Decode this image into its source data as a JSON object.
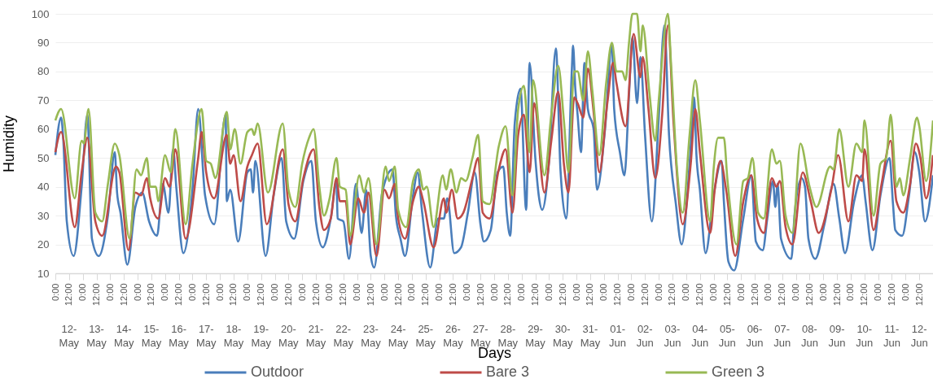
{
  "chart_data": {
    "type": "line",
    "xlabel": "Days",
    "ylabel": "Humidity",
    "xlim": [
      "--05-12T00:00",
      "--06-13T00:00"
    ],
    "ylim": [
      10,
      100
    ],
    "yticks": [
      10,
      20,
      30,
      40,
      50,
      60,
      70,
      80,
      90,
      100
    ],
    "xticks": [
      {
        "value": "--05-12T00:00",
        "label": "0:00"
      },
      {
        "value": "--05-12T12:00",
        "label": "12:00"
      },
      {
        "value": "--05-13T00:00",
        "label": "0:00"
      },
      {
        "value": "--05-13T12:00",
        "label": "12:00"
      },
      {
        "value": "--05-14T00:00",
        "label": "0:00"
      },
      {
        "value": "--05-14T12:00",
        "label": "12:00"
      },
      {
        "value": "--05-15T00:00",
        "label": "0:00"
      },
      {
        "value": "--05-15T12:00",
        "label": "12:00"
      },
      {
        "value": "--05-16T00:00",
        "label": "0:00"
      },
      {
        "value": "--05-16T12:00",
        "label": "12:00"
      },
      {
        "value": "--05-17T00:00",
        "label": "0:00"
      },
      {
        "value": "--05-17T12:00",
        "label": "12:00"
      },
      {
        "value": "--05-18T00:00",
        "label": "0:00"
      },
      {
        "value": "--05-18T12:00",
        "label": "12:00"
      },
      {
        "value": "--05-19T00:00",
        "label": "0:00"
      },
      {
        "value": "--05-19T12:00",
        "label": "12:00"
      },
      {
        "value": "--05-20T00:00",
        "label": "0:00"
      },
      {
        "value": "--05-20T12:00",
        "label": "12:00"
      },
      {
        "value": "--05-21T00:00",
        "label": "0:00"
      },
      {
        "value": "--05-21T12:00",
        "label": "12:00"
      },
      {
        "value": "--05-22T00:00",
        "label": "0:00"
      },
      {
        "value": "--05-22T12:00",
        "label": "12:00"
      },
      {
        "value": "--05-23T00:00",
        "label": "0:00"
      },
      {
        "value": "--05-23T12:00",
        "label": "12:00"
      },
      {
        "value": "--05-24T00:00",
        "label": "0:00"
      },
      {
        "value": "--05-24T12:00",
        "label": "12:00"
      },
      {
        "value": "--05-25T00:00",
        "label": "0:00"
      },
      {
        "value": "--05-25T12:00",
        "label": "12:00"
      },
      {
        "value": "--05-26T00:00",
        "label": "0:00"
      },
      {
        "value": "--05-26T12:00",
        "label": "12:00"
      },
      {
        "value": "--05-27T00:00",
        "label": "0:00"
      },
      {
        "value": "--05-27T12:00",
        "label": "12:00"
      },
      {
        "value": "--05-28T00:00",
        "label": "0:00"
      },
      {
        "value": "--05-28T12:00",
        "label": "12:00"
      },
      {
        "value": "--05-29T00:00",
        "label": "0:00"
      },
      {
        "value": "--05-29T12:00",
        "label": "12:00"
      },
      {
        "value": "--05-30T00:00",
        "label": "0:00"
      },
      {
        "value": "--05-30T12:00",
        "label": "12:00"
      },
      {
        "value": "--05-31T00:00",
        "label": "0:00"
      },
      {
        "value": "--05-31T12:00",
        "label": "12:00"
      },
      {
        "value": "--06-01T00:00",
        "label": "0:00"
      },
      {
        "value": "--06-01T12:00",
        "label": "12:00"
      },
      {
        "value": "--06-02T00:00",
        "label": "0:00"
      },
      {
        "value": "--06-02T12:00",
        "label": "12:00"
      },
      {
        "value": "--06-03T00:00",
        "label": "0:00"
      },
      {
        "value": "--06-03T12:00",
        "label": "12:00"
      },
      {
        "value": "--06-04T00:00",
        "label": "0:00"
      },
      {
        "value": "--06-04T12:00",
        "label": "12:00"
      },
      {
        "value": "--06-05T00:00",
        "label": "0:00"
      },
      {
        "value": "--06-05T12:00",
        "label": "12:00"
      },
      {
        "value": "--06-06T00:00",
        "label": "0:00"
      },
      {
        "value": "--06-06T12:00",
        "label": "12:00"
      },
      {
        "value": "--06-07T00:00",
        "label": "0:00"
      },
      {
        "value": "--06-07T12:00",
        "label": "12:00"
      },
      {
        "value": "--06-08T00:00",
        "label": "0:00"
      },
      {
        "value": "--06-08T12:00",
        "label": "12:00"
      },
      {
        "value": "--06-09T00:00",
        "label": "0:00"
      },
      {
        "value": "--06-09T12:00",
        "label": "12:00"
      },
      {
        "value": "--06-10T00:00",
        "label": "0:00"
      },
      {
        "value": "--06-10T12:00",
        "label": "12:00"
      },
      {
        "value": "--06-11T00:00",
        "label": "0:00"
      },
      {
        "value": "--06-11T12:00",
        "label": "12:00"
      },
      {
        "value": "--06-12T00:00",
        "label": "0:00"
      },
      {
        "value": "--06-12T12:00",
        "label": "12:00"
      }
    ],
    "x2lim": [
      "--05-12T00:00",
      "--06-13T00:00"
    ],
    "x2ticks": [
      {
        "value": "--05-12T12:00",
        "label": "12-May"
      },
      {
        "value": "--05-13T12:00",
        "label": "13-May"
      },
      {
        "value": "--05-14T12:00",
        "label": "14-May"
      },
      {
        "value": "--05-15T12:00",
        "label": "15-May"
      },
      {
        "value": "--05-16T12:00",
        "label": "16-May"
      },
      {
        "value": "--05-17T12:00",
        "label": "17-May"
      },
      {
        "value": "--05-18T12:00",
        "label": "18-May"
      },
      {
        "value": "--05-19T12:00",
        "label": "19-May"
      },
      {
        "value": "--05-20T12:00",
        "label": "20-May"
      },
      {
        "value": "--05-21T12:00",
        "label": "21-May"
      },
      {
        "value": "--05-22T12:00",
        "label": "22-May"
      },
      {
        "value": "--05-23T12:00",
        "label": "23-May"
      },
      {
        "value": "--05-24T12:00",
        "label": "24-May"
      },
      {
        "value": "--05-25T12:00",
        "label": "25-May"
      },
      {
        "value": "--05-26T12:00",
        "label": "26-May"
      },
      {
        "value": "--05-27T12:00",
        "label": "27-May"
      },
      {
        "value": "--05-28T12:00",
        "label": "28-May"
      },
      {
        "value": "--05-29T12:00",
        "label": "29-May"
      },
      {
        "value": "--05-30T12:00",
        "label": "30-May"
      },
      {
        "value": "--05-31T12:00",
        "label": "31-May"
      },
      {
        "value": "--06-01T12:00",
        "label": "01-Jun"
      },
      {
        "value": "--06-02T12:00",
        "label": "02-Jun"
      },
      {
        "value": "--06-03T12:00",
        "label": "03-Jun"
      },
      {
        "value": "--06-04T12:00",
        "label": "04-Jun"
      },
      {
        "value": "--06-05T12:00",
        "label": "05-Jun"
      },
      {
        "value": "--06-06T12:00",
        "label": "06-Jun"
      },
      {
        "value": "--06-07T12:00",
        "label": "07-Jun"
      },
      {
        "value": "--06-08T12:00",
        "label": "08-Jun"
      },
      {
        "value": "--06-09T12:00",
        "label": "09-Jun"
      },
      {
        "value": "--06-10T12:00",
        "label": "10-Jun"
      },
      {
        "value": "--06-11T12:00",
        "label": "11-Jun"
      },
      {
        "value": "--06-12T12:00",
        "label": "12-Jun"
      }
    ],
    "grid": "y",
    "legend": "bottom",
    "series": [
      {
        "name": "Outdoor",
        "color": "#4a7ebb",
        "x": [
          "--05-12T00:00",
          "--05-12T05:00",
          "--05-12T07:00",
          "--05-12T10:00",
          "--05-12T16:00",
          "--05-12T23:00",
          "--05-13T04:00",
          "--05-13T08:00",
          "--05-13T14:00",
          "--05-13T22:00",
          "--05-14T04:00",
          "--05-14T06:00",
          "--05-14T09:00",
          "--05-14T15:00",
          "--05-14T22:00",
          "--05-15T04:00",
          "--05-15T10:00",
          "--05-15T17:00",
          "--05-15T22:00",
          "--05-16T03:00",
          "--05-16T07:00",
          "--05-16T10:00",
          "--05-16T16:00",
          "--05-17T00:00",
          "--05-17T05:00",
          "--05-17T11:00",
          "--05-17T19:00",
          "--05-18T05:00",
          "--05-18T06:00",
          "--05-18T09:00",
          "--05-18T16:00",
          "--05-19T00:00",
          "--05-19T03:00",
          "--05-19T05:00",
          "--05-19T07:00",
          "--05-19T16:00",
          "--05-19T23:00",
          "--05-20T06:00",
          "--05-20T10:00",
          "--05-20T17:00",
          "--05-21T01:00",
          "--05-21T08:00",
          "--05-21T12:00",
          "--05-21T18:00",
          "--05-22T01:00",
          "--05-22T06:00",
          "--05-22T07:00",
          "--05-22T12:00",
          "--05-22T17:00",
          "--05-22T23:00",
          "--05-23T04:00",
          "--05-23T08:00",
          "--05-23T12:00",
          "--05-23T15:00",
          "--05-23T22:00",
          "--05-24T07:00",
          "--05-24T10:00",
          "--05-24T14:00",
          "--05-24T18:00",
          "--05-25T01:00",
          "--05-25T05:00",
          "--05-25T09:00",
          "--05-25T16:00",
          "--05-25T23:00",
          "--05-26T04:00",
          "--05-26T07:00",
          "--05-26T13:00",
          "--05-26T19:00",
          "--05-27T01:00",
          "--05-27T07:00",
          "--05-27T12:00",
          "--05-27T15:00",
          "--05-27T21:00",
          "--05-28T03:00",
          "--05-28T08:00",
          "--05-28T11:00",
          "--05-28T14:00",
          "--05-28T18:00",
          "--05-28T23:00",
          "--05-29T04:00",
          "--05-29T07:00",
          "--05-29T12:00",
          "--05-29T15:00",
          "--05-29T18:00",
          "--05-30T00:00",
          "--05-30T06:00",
          "--05-30T10:00",
          "--05-30T15:00",
          "--05-30T20:00",
          "--05-30T21:00",
          "--05-30T23:00",
          "--05-31T01:00",
          "--05-31T04:00",
          "--05-31T07:00",
          "--05-31T10:00",
          "--05-31T15:00",
          "--05-31T18:00",
          "--06-01T01:00",
          "--06-01T07:00",
          "--06-01T09:00",
          "--06-01T14:00",
          "--06-01T18:00",
          "--06-01T22:00",
          "--06-02T01:00",
          "--06-02T05:00",
          "--06-02T08:00",
          "--06-02T12:00",
          "--06-02T18:00",
          "--06-03T00:00",
          "--06-03T05:00",
          "--06-03T09:00",
          "--06-03T15:00",
          "--06-03T20:00",
          "--06-04T03:00",
          "--06-04T07:00",
          "--06-04T09:00",
          "--06-04T12:00",
          "--06-04T17:00",
          "--06-05T00:00",
          "--06-05T07:00",
          "--06-05T09:00",
          "--06-05T13:00",
          "--06-05T18:00",
          "--06-06T02:00",
          "--06-06T09:00",
          "--06-06T13:00",
          "--06-06T19:00",
          "--06-06T23:00",
          "--06-07T04:00",
          "--06-07T06:00",
          "--06-07T08:00",
          "--06-07T11:00",
          "--06-07T20:00",
          "--06-07T23:00",
          "--06-08T05:00",
          "--06-08T08:00",
          "--06-08T11:00",
          "--06-08T17:00",
          "--06-09T01:00",
          "--06-09T09:00",
          "--06-09T14:00",
          "--06-09T19:00",
          "--06-10T03:00",
          "--06-10T10:00",
          "--06-10T13:00",
          "--06-10T19:00",
          "--06-11T02:00",
          "--06-11T10:00",
          "--06-11T13:00",
          "--06-11T15:00",
          "--06-11T21:00",
          "--06-12T03:00",
          "--06-12T08:00",
          "--06-12T12:00",
          "--06-12T17:00",
          "--06-13T00:00"
        ],
        "values": [
          51,
          64,
          56,
          28,
          16,
          40,
          65,
          22,
          16,
          30,
          52,
          38,
          31,
          13,
          33,
          38,
          28,
          23,
          41,
          31,
          53,
          39,
          17,
          39,
          67,
          37,
          27,
          65,
          35,
          39,
          21,
          45,
          46,
          38,
          49,
          16,
          37,
          50,
          28,
          22,
          42,
          49,
          28,
          19,
          29,
          42,
          29,
          28,
          15,
          41,
          24,
          39,
          16,
          12,
          38,
          46,
          30,
          22,
          16,
          37,
          45,
          31,
          12,
          29,
          29,
          36,
          17,
          19,
          31,
          45,
          27,
          21,
          25,
          45,
          47,
          31,
          23,
          62,
          74,
          32,
          83,
          50,
          37,
          32,
          49,
          88,
          46,
          29,
          81,
          89,
          74,
          65,
          52,
          83,
          67,
          60,
          39,
          60,
          89,
          67,
          52,
          44,
          72,
          92,
          69,
          85,
          58,
          28,
          64,
          96,
          58,
          34,
          20,
          48,
          71,
          51,
          39,
          17,
          37,
          49,
          35,
          14,
          11,
          29,
          44,
          21,
          18,
          29,
          42,
          33,
          41,
          22,
          15,
          31,
          43,
          40,
          22,
          15,
          27,
          41,
          29,
          17,
          35,
          44,
          35,
          18,
          37,
          50,
          34,
          25,
          23,
          37,
          52,
          45,
          28,
          44
        ]
      },
      {
        "name": "Bare 3",
        "color": "#be4b48",
        "x": [
          "--05-12T00:00",
          "--05-12T05:00",
          "--05-12T17:00",
          "--05-12T23:00",
          "--05-13T04:00",
          "--05-13T11:00",
          "--05-13T17:00",
          "--05-14T05:00",
          "--05-14T08:00",
          "--05-14T16:00",
          "--05-14T22:00",
          "--05-15T03:00",
          "--05-15T08:00",
          "--05-15T11:00",
          "--05-15T18:00",
          "--05-16T00:00",
          "--05-16T04:00",
          "--05-16T09:00",
          "--05-16T18:00",
          "--05-17T05:00",
          "--05-17T08:00",
          "--05-17T12:00",
          "--05-17T19:00",
          "--05-18T06:00",
          "--05-18T09:00",
          "--05-18T12:00",
          "--05-18T18:00",
          "--05-19T00:00",
          "--05-19T04:00",
          "--05-19T09:00",
          "--05-19T17:00",
          "--05-20T07:00",
          "--05-20T12:00",
          "--05-20T18:00",
          "--05-21T01:00",
          "--05-21T10:00",
          "--05-21T15:00",
          "--05-21T19:00",
          "--05-22T01:00",
          "--05-22T06:00",
          "--05-22T09:00",
          "--05-22T14:00",
          "--05-22T18:00",
          "--05-23T01:00",
          "--05-23T06:00",
          "--05-23T10:00",
          "--05-23T17:00",
          "--05-24T00:00",
          "--05-24T04:00",
          "--05-24T09:00",
          "--05-24T12:00",
          "--05-24T18:00",
          "--05-25T01:00",
          "--05-25T06:00",
          "--05-25T10:00",
          "--05-25T19:00",
          "--05-26T04:00",
          "--05-26T06:00",
          "--05-26T11:00",
          "--05-26T16:00",
          "--05-26T21:00",
          "--05-27T05:00",
          "--05-27T10:00",
          "--05-27T14:00",
          "--05-27T20:00",
          "--05-28T04:00",
          "--05-28T10:00",
          "--05-28T16:00",
          "--05-28T21:00",
          "--05-29T02:00",
          "--05-29T07:00",
          "--05-29T11:00",
          "--05-29T20:00",
          "--05-30T02:00",
          "--05-30T08:00",
          "--05-30T13:00",
          "--05-30T17:00",
          "--05-30T22:00",
          "--05-31T01:00",
          "--05-31T06:00",
          "--05-31T10:00",
          "--05-31T15:00",
          "--05-31T20:00",
          "--06-01T03:00",
          "--06-01T08:00",
          "--06-01T11:00",
          "--06-01T19:00",
          "--06-02T02:00",
          "--06-02T08:00",
          "--06-02T10:00",
          "--06-02T15:00",
          "--06-02T21:00",
          "--06-03T03:00",
          "--06-03T08:00",
          "--06-03T13:00",
          "--06-03T21:00",
          "--06-04T04:00",
          "--06-04T08:00",
          "--06-04T12:00",
          "--06-04T21:00",
          "--06-05T01:00",
          "--06-05T06:00",
          "--06-05T11:00",
          "--06-05T19:00",
          "--06-06T02:00",
          "--06-06T09:00",
          "--06-06T14:00",
          "--06-06T20:00",
          "--06-07T03:00",
          "--06-07T07:00",
          "--06-07T10:00",
          "--06-07T15:00",
          "--06-07T21:00",
          "--06-08T06:00",
          "--06-08T13:00",
          "--06-08T20:00",
          "--06-09T07:00",
          "--06-09T13:00",
          "--06-09T22:00",
          "--06-10T05:00",
          "--06-10T10:00",
          "--06-10T12:00",
          "--06-10T20:00",
          "--06-11T03:00",
          "--06-11T11:00",
          "--06-11T16:00",
          "--06-11T22:00",
          "--06-12T04:00",
          "--06-12T09:00",
          "--06-12T13:00",
          "--06-12T18:00",
          "--06-13T00:00"
        ],
        "values": [
          52,
          59,
          26,
          45,
          57,
          28,
          23,
          47,
          45,
          18,
          38,
          37,
          43,
          36,
          29,
          43,
          40,
          53,
          22,
          50,
          59,
          45,
          36,
          58,
          48,
          51,
          35,
          47,
          51,
          55,
          27,
          53,
          34,
          28,
          43,
          53,
          33,
          25,
          29,
          43,
          35,
          35,
          20,
          36,
          31,
          38,
          16,
          39,
          36,
          41,
          29,
          22,
          35,
          40,
          35,
          19,
          36,
          31,
          39,
          29,
          31,
          43,
          50,
          31,
          29,
          46,
          53,
          31,
          58,
          65,
          45,
          69,
          38,
          56,
          73,
          48,
          38,
          71,
          69,
          64,
          81,
          66,
          45,
          69,
          83,
          76,
          61,
          93,
          78,
          85,
          67,
          43,
          65,
          96,
          62,
          27,
          48,
          67,
          52,
          24,
          39,
          49,
          39,
          16,
          35,
          44,
          29,
          24,
          43,
          40,
          42,
          26,
          20,
          45,
          35,
          24,
          39,
          51,
          28,
          44,
          42,
          53,
          25,
          41,
          56,
          35,
          31,
          41,
          55,
          50,
          36,
          51
        ]
      },
      {
        "name": "Green 3",
        "color": "#98b954",
        "x": [
          "--05-12T00:00",
          "--05-12T05:00",
          "--05-12T17:00",
          "--05-12T23:00",
          "--05-13T01:00",
          "--05-13T05:00",
          "--05-13T11:00",
          "--05-13T17:00",
          "--05-13T22:00",
          "--05-14T04:00",
          "--05-14T08:00",
          "--05-14T17:00",
          "--05-14T23:00",
          "--05-15T03:00",
          "--05-15T08:00",
          "--05-15T11:00",
          "--05-15T16:00",
          "--05-15T18:00",
          "--05-16T00:00",
          "--05-16T05:00",
          "--05-16T09:00",
          "--05-16T18:00",
          "--05-17T00:00",
          "--05-17T08:00",
          "--05-17T12:00",
          "--05-17T16:00",
          "--05-17T20:00",
          "--05-18T06:00",
          "--05-18T09:00",
          "--05-18T13:00",
          "--05-18T18:00",
          "--05-19T00:00",
          "--05-19T04:00",
          "--05-19T06:00",
          "--05-19T09:00",
          "--05-19T18:00",
          "--05-20T07:00",
          "--05-20T12:00",
          "--05-20T18:00",
          "--05-21T00:00",
          "--05-21T06:00",
          "--05-21T10:00",
          "--05-21T15:00",
          "--05-21T19:00",
          "--05-22T00:00",
          "--05-22T06:00",
          "--05-22T09:00",
          "--05-22T14:00",
          "--05-22T18:00",
          "--05-23T02:00",
          "--05-23T06:00",
          "--05-23T10:00",
          "--05-23T17:00",
          "--05-24T01:00",
          "--05-24T04:00",
          "--05-24T09:00",
          "--05-24T12:00",
          "--05-24T19:00",
          "--05-25T01:00",
          "--05-25T06:00",
          "--05-25T10:00",
          "--05-25T13:00",
          "--05-25T19:00",
          "--05-26T03:00",
          "--05-26T06:00",
          "--05-26T10:00",
          "--05-26T15:00",
          "--05-26T19:00",
          "--05-26T23:00",
          "--05-27T05:00",
          "--05-27T10:00",
          "--05-27T14:00",
          "--05-27T20:00",
          "--05-28T04:00",
          "--05-28T10:00",
          "--05-28T16:00",
          "--05-28T21:00",
          "--05-29T02:00",
          "--05-29T07:00",
          "--05-29T10:00",
          "--05-29T20:00",
          "--05-30T02:00",
          "--05-30T08:00",
          "--05-30T13:00",
          "--05-30T17:00",
          "--05-30T22:00",
          "--05-31T01:00",
          "--05-31T06:00",
          "--05-31T10:00",
          "--05-31T14:00",
          "--05-31T20:00",
          "--06-01T02:00",
          "--06-01T07:00",
          "--06-01T11:00",
          "--06-01T16:00",
          "--06-01T19:00",
          "--06-01T22:00",
          "--06-02T01:00",
          "--06-02T05:00",
          "--06-02T08:00",
          "--06-02T10:00",
          "--06-02T16:00",
          "--06-02T21:00",
          "--06-03T00:00",
          "--06-03T08:00",
          "--06-03T11:00",
          "--06-03T16:00",
          "--06-03T21:00",
          "--06-04T03:00",
          "--06-04T08:00",
          "--06-04T12:00",
          "--06-04T21:00",
          "--06-05T00:00",
          "--06-05T04:00",
          "--06-05T09:00",
          "--06-05T12:00",
          "--06-05T20:00",
          "--06-06T02:00",
          "--06-06T06:00",
          "--06-06T10:00",
          "--06-06T15:00",
          "--06-06T20:00",
          "--06-07T03:00",
          "--06-07T07:00",
          "--06-07T10:00",
          "--06-07T15:00",
          "--06-07T21:00",
          "--06-08T04:00",
          "--06-08T12:00",
          "--06-08T18:00",
          "--06-09T06:00",
          "--06-09T09:00",
          "--06-09T14:00",
          "--06-09T22:00",
          "--06-10T05:00",
          "--06-10T10:00",
          "--06-10T12:00",
          "--06-10T20:00",
          "--06-11T02:00",
          "--06-11T07:00",
          "--06-11T11:00",
          "--06-11T16:00",
          "--06-11T19:00",
          "--06-11T22:00",
          "--06-12T04:00",
          "--06-12T10:00",
          "--06-12T12:00",
          "--06-12T18:00",
          "--06-13T00:00"
        ],
        "values": [
          63,
          67,
          36,
          56,
          55,
          67,
          31,
          28,
          41,
          55,
          51,
          22,
          46,
          44,
          50,
          40,
          40,
          35,
          51,
          45,
          60,
          27,
          48,
          67,
          49,
          48,
          43,
          66,
          53,
          60,
          48,
          59,
          60,
          58,
          62,
          38,
          62,
          39,
          33,
          48,
          57,
          60,
          40,
          30,
          36,
          50,
          40,
          39,
          23,
          44,
          38,
          43,
          20,
          47,
          42,
          47,
          32,
          26,
          42,
          46,
          39,
          40,
          26,
          44,
          39,
          46,
          38,
          43,
          42,
          50,
          58,
          35,
          34,
          54,
          61,
          37,
          67,
          75,
          52,
          77,
          44,
          65,
          82,
          63,
          45,
          80,
          80,
          70,
          87,
          73,
          51,
          76,
          90,
          80,
          80,
          77,
          90,
          100,
          100,
          87,
          96,
          72,
          56,
          70,
          100,
          81,
          46,
          31,
          58,
          77,
          63,
          28,
          46,
          57,
          57,
          43,
          20,
          42,
          43,
          50,
          31,
          29,
          53,
          48,
          49,
          30,
          24,
          55,
          40,
          33,
          47,
          46,
          60,
          40,
          55,
          52,
          63,
          30,
          48,
          50,
          65,
          40,
          43,
          37,
          50,
          64,
          61,
          42,
          63
        ]
      }
    ]
  }
}
